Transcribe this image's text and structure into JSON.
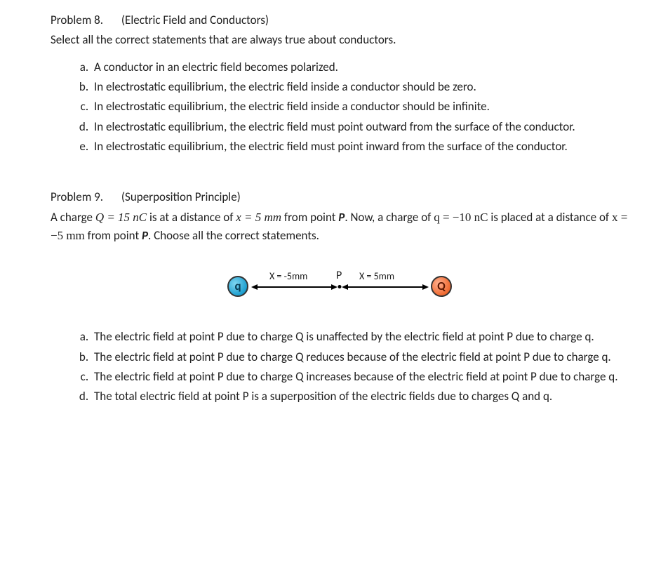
{
  "problem8": {
    "label": "Problem 8.",
    "title": "(Electric Field and Conductors)",
    "intro": "Select all the correct statements that are always true about conductors.",
    "choices": {
      "a": "A conductor in an electric field becomes polarized.",
      "b": "In electrostatic equilibrium, the electric field inside a conductor should be zero.",
      "c": "In electrostatic equilibrium, the electric field inside a conductor should be infinite.",
      "d": "In electrostatic equilibrium, the electric field must point outward from the surface of the conductor.",
      "e": "In electrostatic equilibrium, the electric field must point inward from the surface of the conductor."
    }
  },
  "problem9": {
    "label": "Problem 9.",
    "title": "(Superposition Principle)",
    "intro_parts": {
      "p1": "A charge ",
      "Qeq": "Q  =  15 nC",
      "p2": " is at a distance of ",
      "xeq1": "x  =   5 mm",
      "p3": " from point ",
      "Pbold": "P",
      "p4": ". Now, a charge of ",
      "qeq": "q  =  −10 nC",
      "p5": " is placed at a distance of ",
      "xeq2": "x  =  −5 mm",
      "p6": " from point ",
      "p7": ". Choose all the correct statements."
    },
    "diagram": {
      "q_label": "q",
      "Q_label": "Q",
      "left_axis_label": "X = -5mm",
      "P_label": "P",
      "right_axis_label": "X = 5mm",
      "q_color": "#1ea0d0",
      "Q_color": "#f06a30",
      "point_color": "#000000"
    },
    "choices": {
      "a": "The electric field at point P due to charge Q is unaffected by the electric field at point P due to charge q.",
      "b": "The electric field at point P due to charge Q reduces because of the electric field at point P due to charge q.",
      "c": "The electric field at point P due to charge Q increases because of the electric field at point P due to charge q.",
      "d": "The total electric field at point P is a superposition of the electric fields due to charges Q and q."
    }
  }
}
